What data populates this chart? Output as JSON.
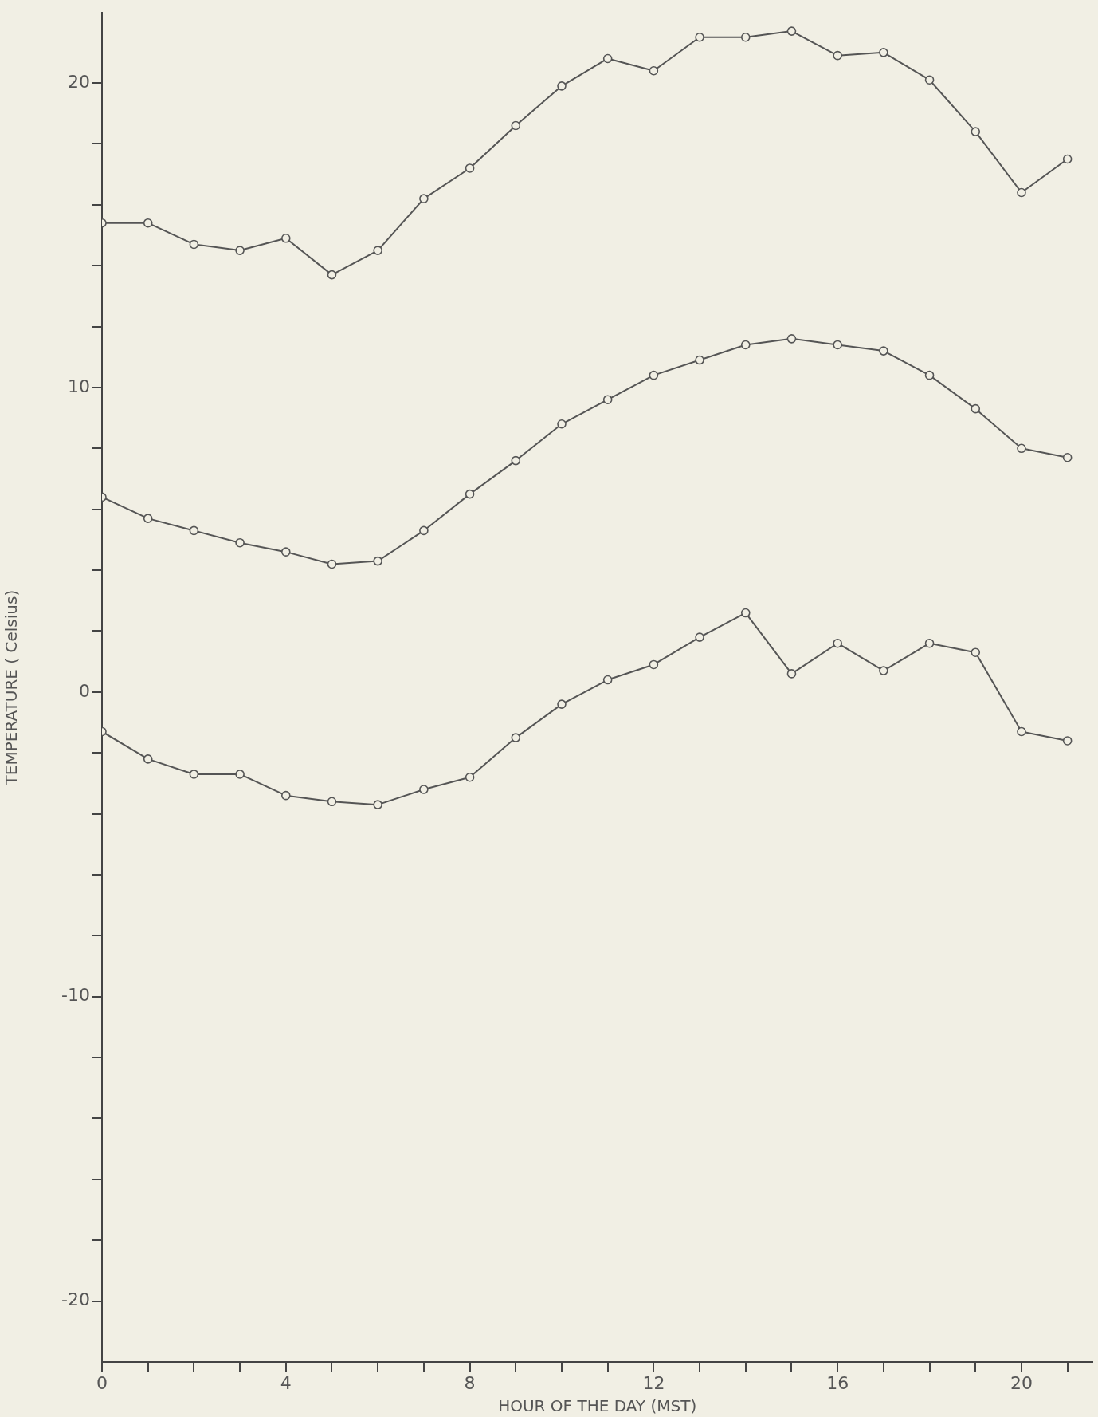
{
  "chart_data": {
    "type": "line",
    "xlabel": "HOUR OF THE DAY (MST)",
    "ylabel": "TEMPERATURE ( Celsius)",
    "x": [
      0,
      1,
      2,
      3,
      4,
      5,
      6,
      7,
      8,
      9,
      10,
      11,
      12,
      13,
      14,
      15,
      16,
      17,
      18,
      19,
      20,
      21
    ],
    "series": [
      {
        "color": "#555555",
        "values": [
          15.4,
          15.4,
          14.7,
          14.5,
          14.9,
          13.7,
          14.5,
          16.2,
          17.2,
          18.6,
          19.9,
          20.8,
          20.4,
          21.5,
          21.5,
          21.7,
          20.9,
          21.0,
          20.1,
          18.4,
          16.4,
          17.5
        ]
      },
      {
        "color": "#555555",
        "values": [
          6.4,
          5.7,
          5.3,
          4.9,
          4.6,
          4.2,
          4.3,
          5.3,
          6.5,
          7.6,
          8.8,
          9.6,
          10.4,
          10.9,
          11.4,
          11.6,
          11.4,
          11.2,
          10.4,
          9.3,
          8.0,
          7.7
        ]
      },
      {
        "color": "#555555",
        "values": [
          -1.3,
          -2.2,
          -2.7,
          -2.7,
          -3.4,
          -3.6,
          -3.7,
          -3.2,
          -2.8,
          -1.5,
          -0.4,
          0.4,
          0.9,
          1.8,
          2.6,
          0.6,
          1.6,
          0.7,
          1.6,
          1.3,
          -1.3,
          -1.6
        ]
      }
    ],
    "xlim": [
      0,
      21.55
    ],
    "ylim": [
      -22,
      22.3
    ],
    "xticks": [
      0,
      {
        "value": 1,
        "label": null
      },
      {
        "value": 2,
        "label": null
      },
      {
        "value": 3,
        "label": null
      },
      4,
      {
        "value": 5,
        "label": null
      },
      {
        "value": 6,
        "label": null
      },
      {
        "value": 7,
        "label": null
      },
      8,
      {
        "value": 9,
        "label": null
      },
      {
        "value": 10,
        "label": null
      },
      {
        "value": 11,
        "label": null
      },
      12,
      {
        "value": 13,
        "label": null
      },
      {
        "value": 14,
        "label": null
      },
      {
        "value": 15,
        "label": null
      },
      16,
      {
        "value": 17,
        "label": null
      },
      {
        "value": 18,
        "label": null
      },
      {
        "value": 19,
        "label": null
      },
      20,
      {
        "value": 21,
        "label": null
      }
    ],
    "yticks": [
      -20,
      {
        "value": -18,
        "label": null
      },
      {
        "value": -16,
        "label": null
      },
      {
        "value": -14,
        "label": null
      },
      {
        "value": -12,
        "label": null
      },
      -10,
      {
        "value": -8,
        "label": null
      },
      {
        "value": -6,
        "label": null
      },
      {
        "value": -4,
        "label": null
      },
      {
        "value": -2,
        "label": null
      },
      0,
      {
        "value": 2,
        "label": null
      },
      {
        "value": 4,
        "label": null
      },
      {
        "value": 6,
        "label": null
      },
      {
        "value": 8,
        "label": null
      },
      10,
      {
        "value": 12,
        "label": null
      },
      {
        "value": 14,
        "label": null
      },
      {
        "value": 16,
        "label": null
      },
      {
        "value": 18,
        "label": null
      },
      20
    ],
    "marker": "circle",
    "line_style": "solid",
    "grid": false,
    "legend": false
  }
}
